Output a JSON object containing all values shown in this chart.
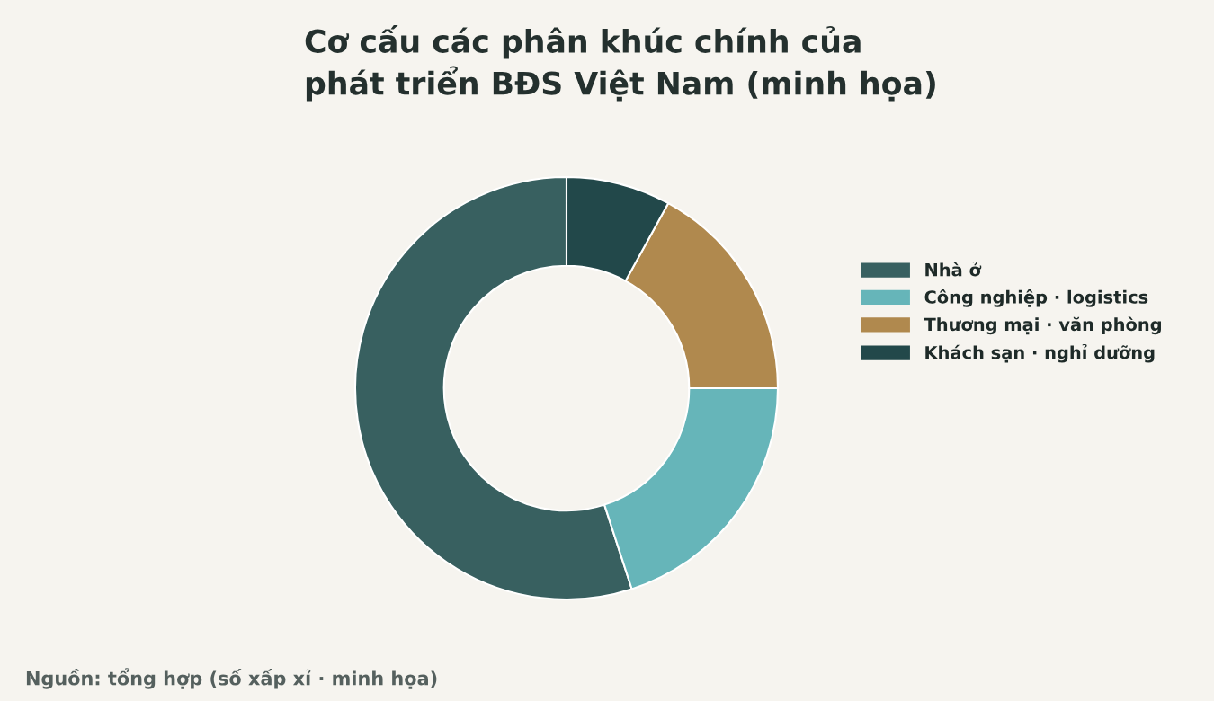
{
  "chart_data": {
    "type": "donut",
    "title": "Cơ cấu các phân khúc chính của\nphát triển BĐS Việt Nam (minh họa)",
    "categories": [
      "Nhà ở",
      "Công nghiệp · logistics",
      "Thương mại · văn phòng",
      "Khách sạn · nghỉ dưỡng"
    ],
    "values": [
      55,
      20,
      17,
      8
    ],
    "colors": [
      "#386060",
      "#66b5b9",
      "#b0894e",
      "#22484a"
    ],
    "legend": "right",
    "annotations": [
      "Nguồn: tổng hợp (số xấp xỉ · minh họa)"
    ]
  }
}
